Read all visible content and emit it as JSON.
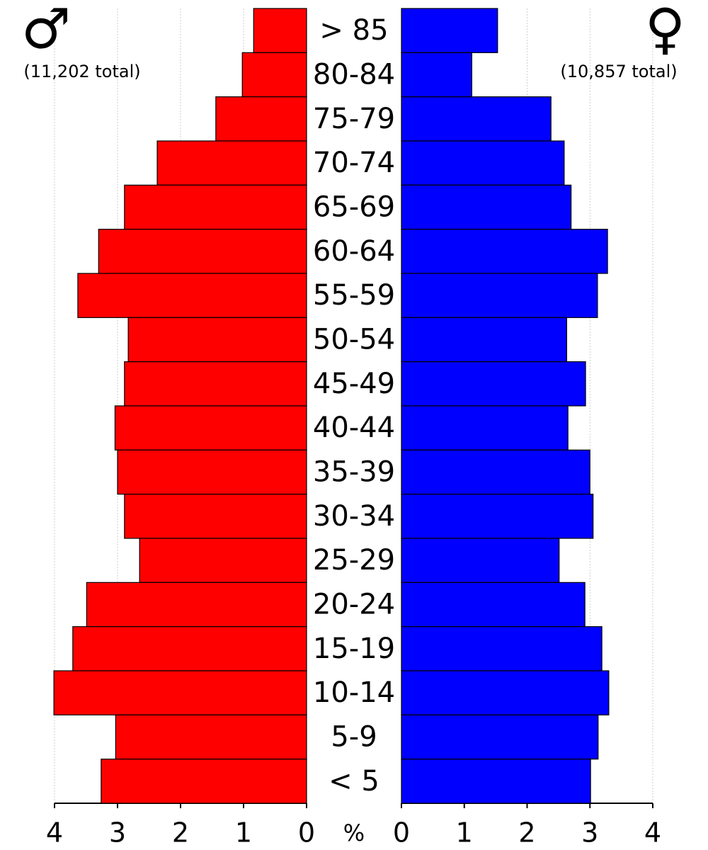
{
  "chart_data": {
    "type": "population-pyramid",
    "categories": [
      "> 85",
      "80-84",
      "75-79",
      "70-74",
      "65-69",
      "60-64",
      "55-59",
      "50-54",
      "45-49",
      "40-44",
      "35-39",
      "30-34",
      "25-29",
      "20-24",
      "15-19",
      "10-14",
      "5-9",
      "< 5"
    ],
    "series": [
      {
        "name": "♂",
        "total_label": "(11,202 total)",
        "color": "#ff0000",
        "values": [
          0.84,
          1.02,
          1.44,
          2.37,
          2.89,
          3.3,
          3.63,
          2.83,
          2.89,
          3.04,
          3.0,
          2.89,
          2.65,
          3.49,
          3.71,
          4.01,
          3.03,
          3.26
        ]
      },
      {
        "name": "♀",
        "total_label": "(10,857 total)",
        "color": "#0000ff",
        "values": [
          1.53,
          1.12,
          2.38,
          2.59,
          2.7,
          3.28,
          3.12,
          2.63,
          2.93,
          2.65,
          3.0,
          3.05,
          2.51,
          2.92,
          3.19,
          3.3,
          3.13,
          3.01
        ]
      }
    ],
    "xlim": [
      0,
      4
    ],
    "xticks": [
      0,
      1,
      2,
      3,
      4
    ],
    "axis_label": "%",
    "grid": true
  }
}
